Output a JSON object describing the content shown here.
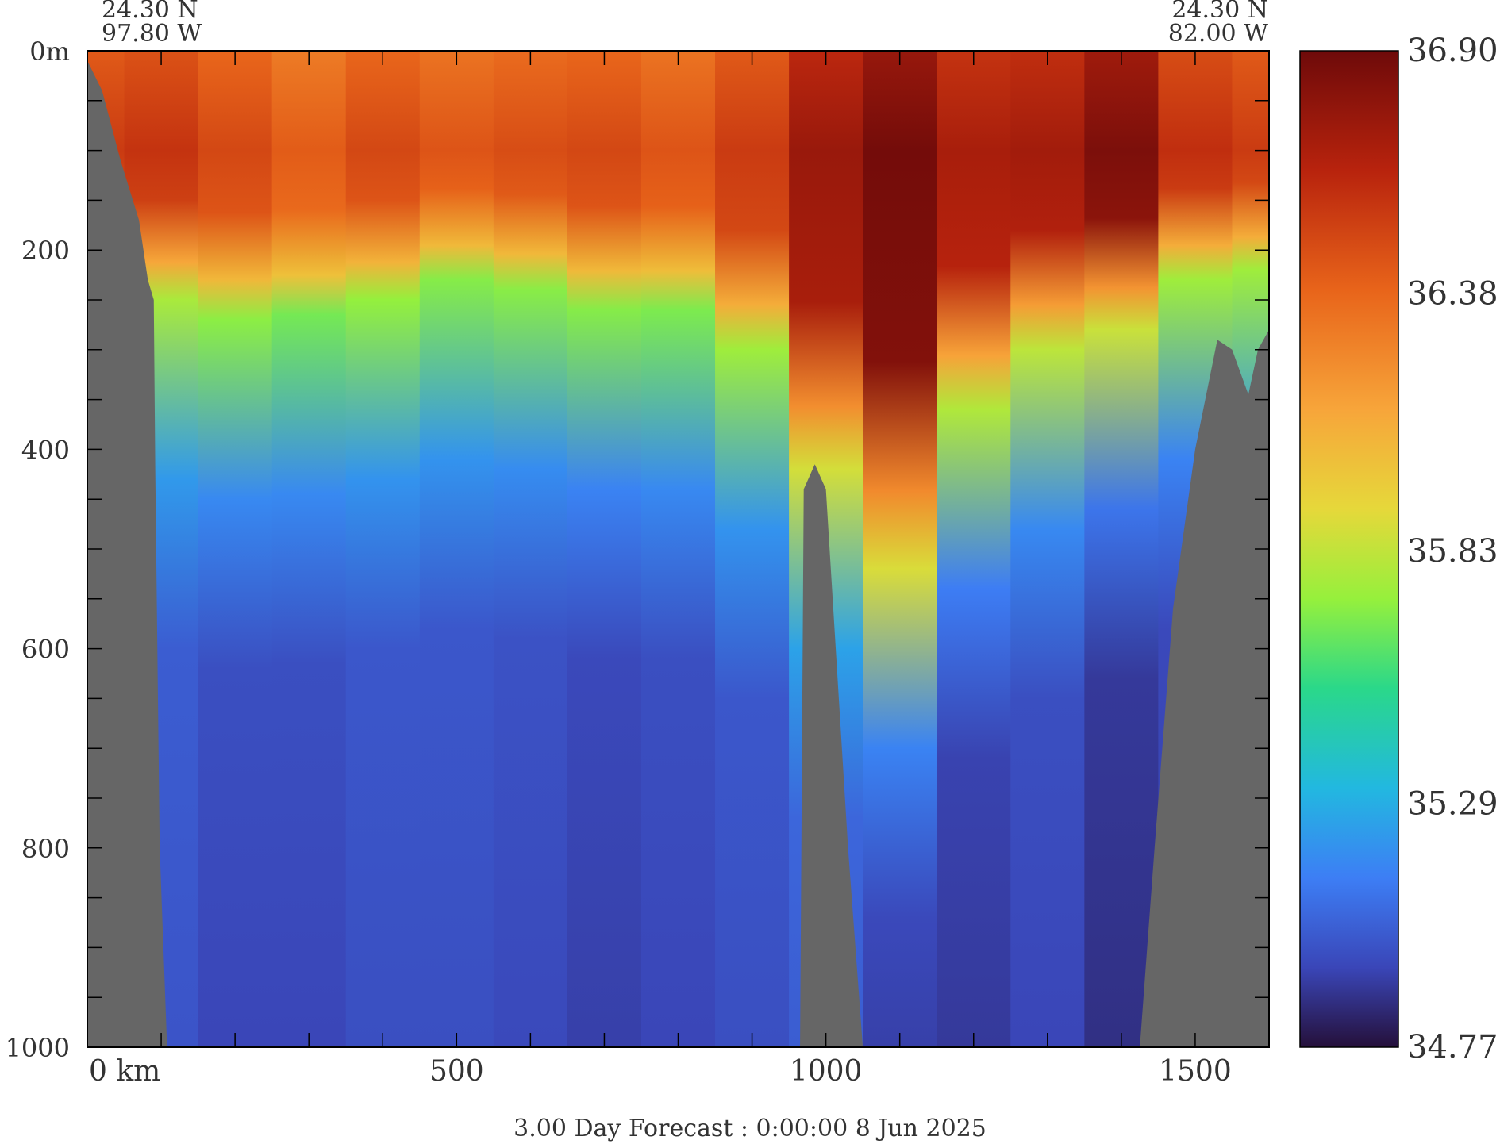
{
  "chart_data": {
    "type": "heatmap",
    "title": "",
    "corner_labels": {
      "top_left": {
        "lat": "24.30 N",
        "lon": "97.80 W"
      },
      "top_right": {
        "lat": "24.30 N",
        "lon": "82.00 W"
      }
    },
    "xlabel": "",
    "ylabel": "",
    "x_unit_label": "0 km",
    "y_unit_label": "0m",
    "xlim": [
      0,
      1600
    ],
    "ylim": [
      0,
      1000
    ],
    "x_ticks": [
      {
        "value": 0,
        "label": "0 km"
      },
      {
        "value": 500,
        "label": "500"
      },
      {
        "value": 1000,
        "label": "1000"
      },
      {
        "value": 1500,
        "label": "1500"
      }
    ],
    "y_ticks": [
      {
        "value": 0,
        "label": "0m"
      },
      {
        "value": 200,
        "label": "200"
      },
      {
        "value": 400,
        "label": "400"
      },
      {
        "value": 600,
        "label": "600"
      },
      {
        "value": 800,
        "label": "800"
      },
      {
        "value": 1000,
        "label": "1000"
      }
    ],
    "colorbar": {
      "min": 34.77,
      "max": 36.9,
      "tick_labels": [
        "36.90",
        "36.38",
        "35.83",
        "35.29",
        "34.77"
      ],
      "tick_values": [
        36.9,
        36.38,
        35.83,
        35.29,
        34.77
      ]
    },
    "bathymetry_profile": [
      {
        "x": 0,
        "depth": 10
      },
      {
        "x": 20,
        "depth": 40
      },
      {
        "x": 45,
        "depth": 110
      },
      {
        "x": 70,
        "depth": 170
      },
      {
        "x": 82,
        "depth": 230
      },
      {
        "x": 90,
        "depth": 250
      },
      {
        "x": 92,
        "depth": 420
      },
      {
        "x": 98,
        "depth": 800
      },
      {
        "x": 108,
        "depth": 1000
      },
      {
        "x": 965,
        "depth": 1000
      },
      {
        "x": 970,
        "depth": 440
      },
      {
        "x": 985,
        "depth": 415
      },
      {
        "x": 1000,
        "depth": 440
      },
      {
        "x": 1030,
        "depth": 800
      },
      {
        "x": 1050,
        "depth": 1000
      },
      {
        "x": 1425,
        "depth": 1000
      },
      {
        "x": 1445,
        "depth": 800
      },
      {
        "x": 1470,
        "depth": 560
      },
      {
        "x": 1500,
        "depth": 400
      },
      {
        "x": 1530,
        "depth": 290
      },
      {
        "x": 1550,
        "depth": 300
      },
      {
        "x": 1572,
        "depth": 345
      },
      {
        "x": 1585,
        "depth": 300
      },
      {
        "x": 1600,
        "depth": 280
      }
    ],
    "field_columns": [
      {
        "x": 0,
        "halocline": 240,
        "deep_min": 34.97,
        "surface_max": 36.55
      },
      {
        "x": 100,
        "halocline": 250,
        "deep_min": 34.97,
        "surface_max": 36.58
      },
      {
        "x": 200,
        "halocline": 270,
        "deep_min": 34.92,
        "surface_max": 36.5
      },
      {
        "x": 300,
        "halocline": 265,
        "deep_min": 34.92,
        "surface_max": 36.42
      },
      {
        "x": 400,
        "halocline": 250,
        "deep_min": 34.95,
        "surface_max": 36.5
      },
      {
        "x": 500,
        "halocline": 230,
        "deep_min": 34.95,
        "surface_max": 36.45
      },
      {
        "x": 600,
        "halocline": 240,
        "deep_min": 34.93,
        "surface_max": 36.48
      },
      {
        "x": 700,
        "halocline": 260,
        "deep_min": 34.9,
        "surface_max": 36.5
      },
      {
        "x": 800,
        "halocline": 260,
        "deep_min": 34.92,
        "surface_max": 36.45
      },
      {
        "x": 900,
        "halocline": 300,
        "deep_min": 34.95,
        "surface_max": 36.55
      },
      {
        "x": 1000,
        "halocline": 420,
        "deep_min": 35.0,
        "surface_max": 36.75
      },
      {
        "x": 1100,
        "halocline": 520,
        "deep_min": 34.9,
        "surface_max": 36.88
      },
      {
        "x": 1200,
        "halocline": 360,
        "deep_min": 34.88,
        "surface_max": 36.7
      },
      {
        "x": 1300,
        "halocline": 300,
        "deep_min": 34.92,
        "surface_max": 36.72
      },
      {
        "x": 1400,
        "halocline": 280,
        "deep_min": 34.85,
        "surface_max": 36.85
      },
      {
        "x": 1500,
        "halocline": 230,
        "deep_min": 34.9,
        "surface_max": 36.6
      },
      {
        "x": 1600,
        "halocline": 220,
        "deep_min": 34.95,
        "surface_max": 36.55
      }
    ]
  },
  "footer": {
    "forecast_text": "3.00 Day Forecast :  0:00:00   8 Jun 2025"
  }
}
